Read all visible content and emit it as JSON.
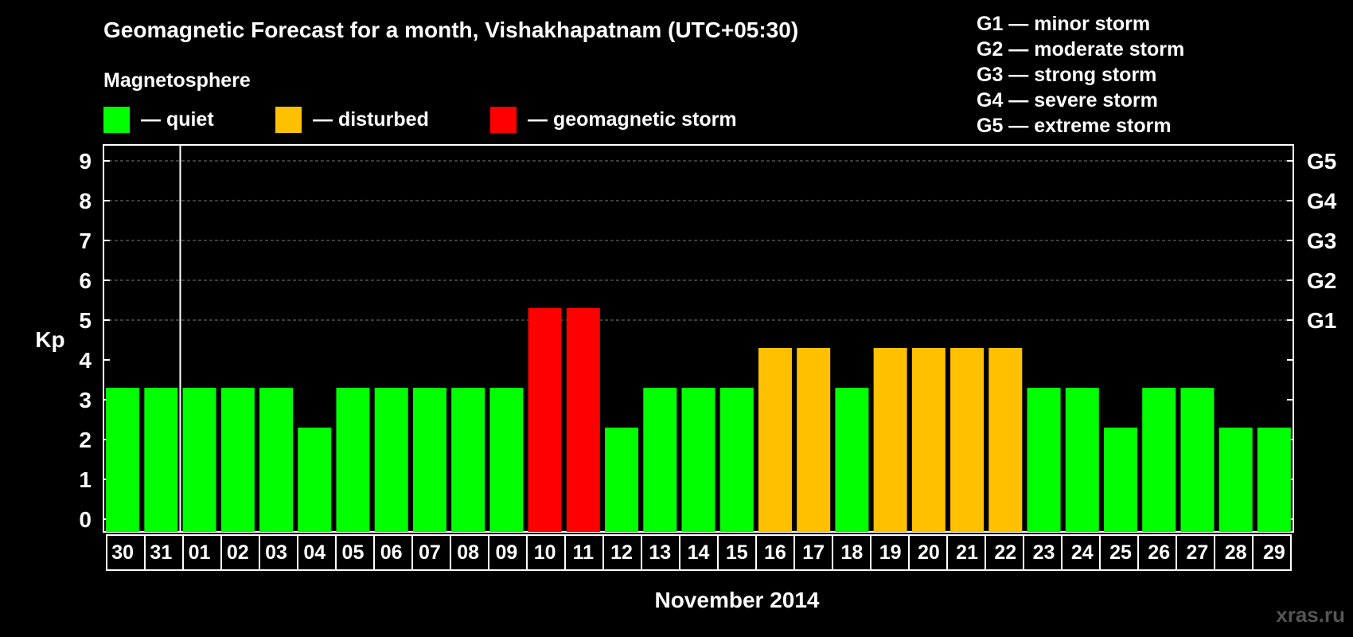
{
  "chart_data": {
    "type": "bar",
    "title": "Geomagnetic Forecast for a month, Vishakhapatnam (UTC+05:30)",
    "subtitle": "Magnetosphere",
    "ylabel": "Kp",
    "xlabel": "November 2014",
    "ylim": [
      0,
      9
    ],
    "yticks": [
      "0",
      "1",
      "2",
      "3",
      "4",
      "5",
      "6",
      "7",
      "8",
      "9"
    ],
    "right_ticks": [
      {
        "kp": 5,
        "label": "G1"
      },
      {
        "kp": 6,
        "label": "G2"
      },
      {
        "kp": 7,
        "label": "G3"
      },
      {
        "kp": 8,
        "label": "G4"
      },
      {
        "kp": 9,
        "label": "G5"
      }
    ],
    "grid": "dashed horizontal at Kp 5-9",
    "categories": [
      "30",
      "31",
      "01",
      "02",
      "03",
      "04",
      "05",
      "06",
      "07",
      "08",
      "09",
      "10",
      "11",
      "12",
      "13",
      "14",
      "15",
      "16",
      "17",
      "18",
      "19",
      "20",
      "21",
      "22",
      "23",
      "24",
      "25",
      "26",
      "27",
      "28",
      "29"
    ],
    "values": [
      3,
      3,
      3,
      3,
      3,
      2,
      3,
      3,
      3,
      3,
      3,
      5,
      5,
      2,
      3,
      3,
      3,
      4,
      4,
      3,
      4,
      4,
      4,
      4,
      3,
      3,
      2,
      3,
      3,
      2,
      2
    ],
    "month_divider_after": "31",
    "legend": [
      {
        "key": "quiet",
        "label": "— quiet",
        "color": "#00ff00"
      },
      {
        "key": "disturbed",
        "label": "— disturbed",
        "color": "#ffc000"
      },
      {
        "key": "storm",
        "label": "— geomagnetic storm",
        "color": "#ff0000"
      }
    ],
    "storm_scale": [
      "G1 — minor storm",
      "G2 — moderate storm",
      "G3 — strong storm",
      "G4 — severe storm",
      "G5 — extreme storm"
    ],
    "watermark": "xras.ru"
  }
}
